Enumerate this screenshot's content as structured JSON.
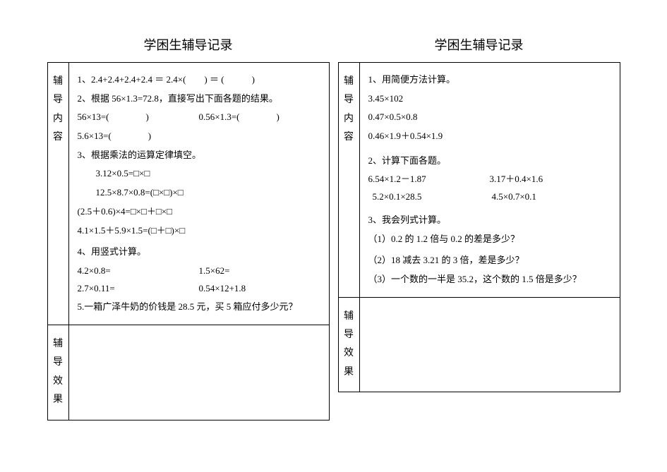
{
  "left": {
    "title": "学困生辅导记录",
    "label_content": "辅导内容",
    "label_effect": "辅导效果",
    "lines": {
      "l1": "1、2.4+2.4+2.4+2.4 ＝ 2.4×(　　) ＝ (　　　)",
      "l2": "2、根据 56×1.3=72.8，直接写出下面各题的结果。",
      "l3a": "56×13=(　　　　)",
      "l3b": "0.56×1.3=(　　　　)",
      "l4": "5.6×13=(　　　　)",
      "l5": "3、根据乘法的运算定律填空。",
      "l6": "3.12×0.5=□×□",
      "l7": "12.5×8.7×0.8=(□×□)×□",
      "l8": "(2.5＋0.6)×4=□×□＋□×□",
      "l9": "4.1×1.5＋5.9×1.5=(□＋□)×□",
      "l10": "4、用竖式计算。",
      "l11a": "4.2×0.8=",
      "l11b": "1.5×62=",
      "l12a": "2.7×0.11=",
      "l12b": "0.54×12+1.8",
      "l13": "5.一箱广泽牛奶的价钱是 28.5 元，买 5 箱应付多少元？"
    }
  },
  "right": {
    "title": "学困生辅导记录",
    "label_content": "辅导内容",
    "label_effect": "辅导效果",
    "lines": {
      "r1": "1、用简便方法计算。",
      "r2": "3.45×102",
      "r3": "0.47×0.5×0.8",
      "r4": "0.46×1.9＋0.54×1.9",
      "r5": "2、计算下面各题。",
      "r6a": "6.54×1.2－1.87",
      "r6b": "3.17＋0.4×1.6",
      "r7a": "5.2×0.1×28.5",
      "r7b": "4.5×0.7×0.1",
      "r8": "3、我会列式计算。",
      "r9": "（1）0.2 的 1.2 倍与 0.2 的差是多少？",
      "r10": "（2）18 减去 3.21 的 3 倍，差是多少？",
      "r11": "（3）一个数的一半是 35.2，这个数的 1.5 倍是多少？"
    }
  }
}
